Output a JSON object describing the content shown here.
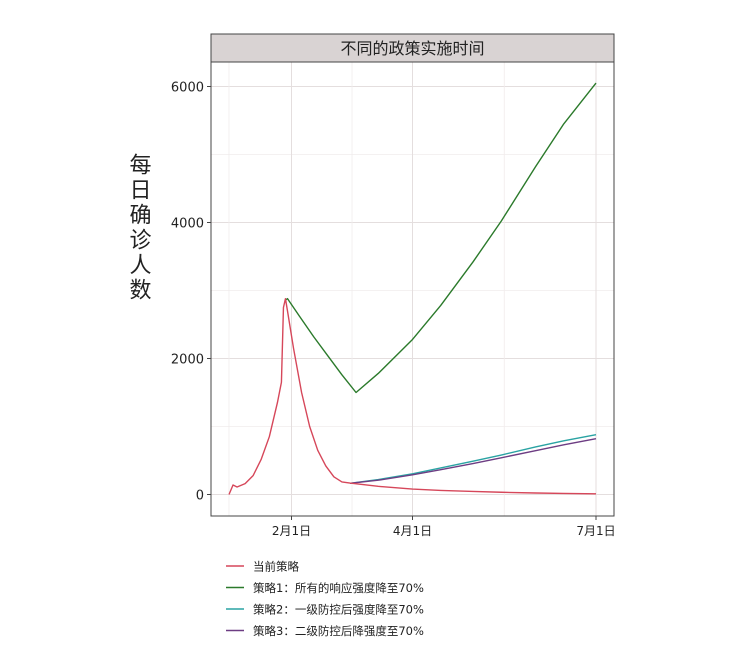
{
  "chart_data": {
    "type": "line",
    "title": "不同的政策实施时间",
    "ylabel": "每日确诊人数",
    "xlabel": "",
    "x_ticks": [
      "2月1日",
      "4月1日",
      "7月1日"
    ],
    "x_tick_dates": [
      "2020-02-01",
      "2020-04-01",
      "2020-07-01"
    ],
    "xlim": [
      "2020-01-01",
      "2020-07-01"
    ],
    "y_ticks": [
      0,
      2000,
      4000,
      6000
    ],
    "ylim": [
      0,
      6000
    ],
    "grid": true,
    "legend_position": "bottom-left",
    "series": [
      {
        "name": "当前策略",
        "color": "#d6475a",
        "points": [
          [
            "2020-01-01",
            0
          ],
          [
            "2020-01-03",
            140
          ],
          [
            "2020-01-05",
            110
          ],
          [
            "2020-01-09",
            160
          ],
          [
            "2020-01-13",
            280
          ],
          [
            "2020-01-17",
            520
          ],
          [
            "2020-01-21",
            850
          ],
          [
            "2020-01-25",
            1350
          ],
          [
            "2020-01-27",
            1650
          ],
          [
            "2020-01-28",
            2750
          ],
          [
            "2020-01-29",
            2880
          ],
          [
            "2020-01-30",
            2700
          ],
          [
            "2020-02-02",
            2150
          ],
          [
            "2020-02-06",
            1500
          ],
          [
            "2020-02-10",
            1000
          ],
          [
            "2020-02-14",
            650
          ],
          [
            "2020-02-18",
            420
          ],
          [
            "2020-02-22",
            260
          ],
          [
            "2020-02-26",
            185
          ],
          [
            "2020-03-01",
            168
          ],
          [
            "2020-03-15",
            120
          ],
          [
            "2020-04-01",
            80
          ],
          [
            "2020-04-15",
            60
          ],
          [
            "2020-05-01",
            45
          ],
          [
            "2020-05-15",
            33
          ],
          [
            "2020-06-01",
            22
          ],
          [
            "2020-06-15",
            15
          ],
          [
            "2020-07-01",
            10
          ]
        ]
      },
      {
        "name": "策略1：所有的响应强度降至70%",
        "color": "#2b7a2b",
        "points": [
          [
            "2020-01-29",
            2860
          ],
          [
            "2020-01-30",
            2880
          ],
          [
            "2020-02-05",
            2620
          ],
          [
            "2020-02-12",
            2320
          ],
          [
            "2020-02-19",
            2040
          ],
          [
            "2020-02-26",
            1760
          ],
          [
            "2020-03-04",
            1500
          ],
          [
            "2020-03-15",
            1780
          ],
          [
            "2020-04-01",
            2280
          ],
          [
            "2020-04-15",
            2780
          ],
          [
            "2020-05-01",
            3420
          ],
          [
            "2020-05-15",
            4020
          ],
          [
            "2020-06-01",
            4820
          ],
          [
            "2020-06-15",
            5450
          ],
          [
            "2020-07-01",
            6050
          ]
        ]
      },
      {
        "name": "策略2：一级防控后强度降至70%",
        "color": "#2aa3a3",
        "points": [
          [
            "2020-03-01",
            165
          ],
          [
            "2020-03-15",
            220
          ],
          [
            "2020-04-01",
            305
          ],
          [
            "2020-04-15",
            390
          ],
          [
            "2020-05-01",
            490
          ],
          [
            "2020-05-15",
            580
          ],
          [
            "2020-06-01",
            700
          ],
          [
            "2020-06-15",
            790
          ],
          [
            "2020-07-01",
            880
          ]
        ]
      },
      {
        "name": "策略3：二级防控后降强度至70%",
        "color": "#6d3d83",
        "points": [
          [
            "2020-03-01",
            165
          ],
          [
            "2020-03-15",
            210
          ],
          [
            "2020-04-01",
            290
          ],
          [
            "2020-04-15",
            365
          ],
          [
            "2020-05-01",
            455
          ],
          [
            "2020-05-15",
            540
          ],
          [
            "2020-06-01",
            645
          ],
          [
            "2020-06-15",
            730
          ],
          [
            "2020-07-01",
            820
          ]
        ]
      }
    ]
  }
}
